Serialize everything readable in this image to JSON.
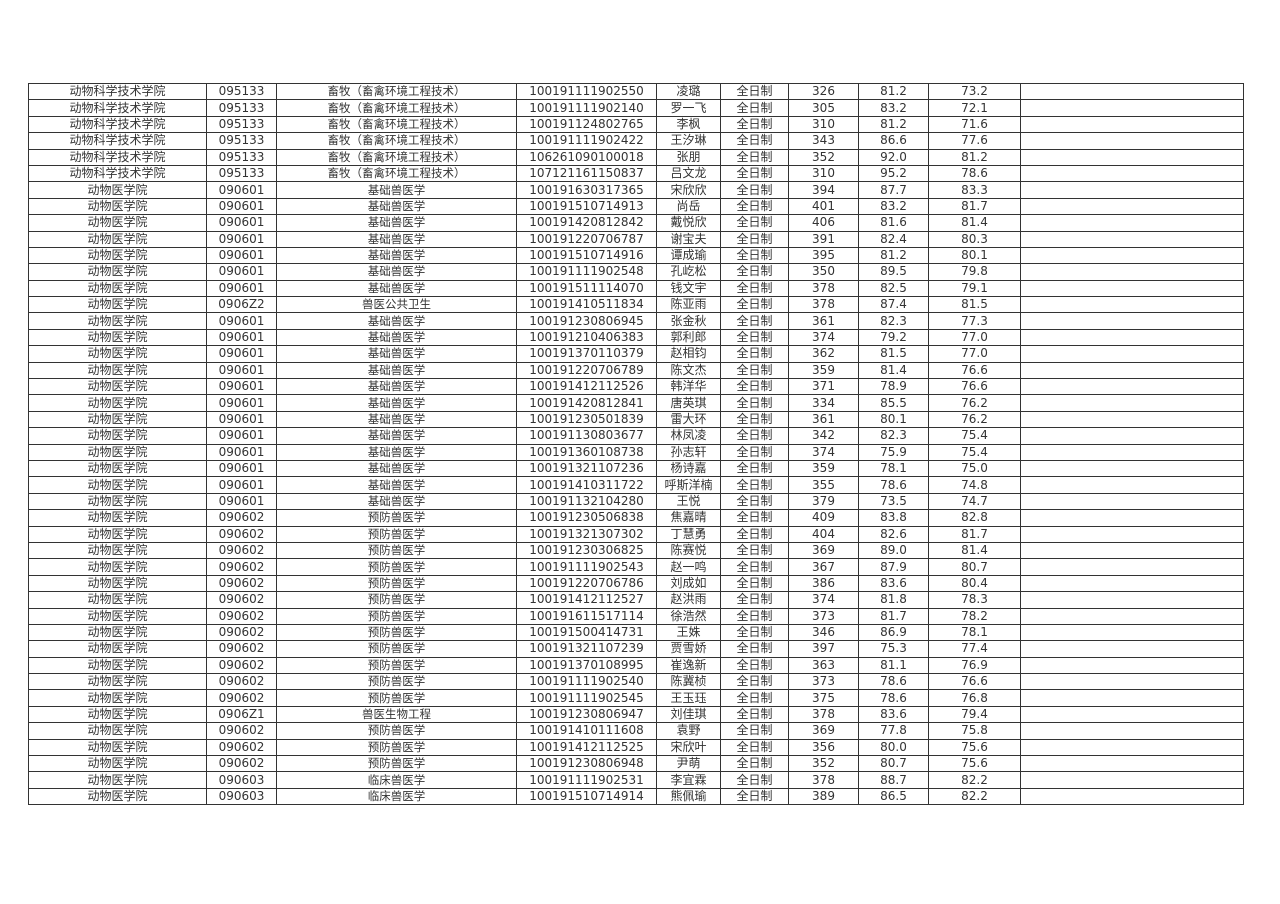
{
  "table": {
    "rows": [
      [
        "动物科学技术学院",
        "095133",
        "畜牧（畜禽环境工程技术）",
        "100191111902550",
        "凌璐",
        "全日制",
        "326",
        "81.2",
        "73.2",
        ""
      ],
      [
        "动物科学技术学院",
        "095133",
        "畜牧（畜禽环境工程技术）",
        "100191111902140",
        "罗一飞",
        "全日制",
        "305",
        "83.2",
        "72.1",
        ""
      ],
      [
        "动物科学技术学院",
        "095133",
        "畜牧（畜禽环境工程技术）",
        "100191124802765",
        "李枫",
        "全日制",
        "310",
        "81.2",
        "71.6",
        ""
      ],
      [
        "动物科学技术学院",
        "095133",
        "畜牧（畜禽环境工程技术）",
        "100191111902422",
        "王汐琳",
        "全日制",
        "343",
        "86.6",
        "77.6",
        ""
      ],
      [
        "动物科学技术学院",
        "095133",
        "畜牧（畜禽环境工程技术）",
        "106261090100018",
        "张朋",
        "全日制",
        "352",
        "92.0",
        "81.2",
        ""
      ],
      [
        "动物科学技术学院",
        "095133",
        "畜牧（畜禽环境工程技术）",
        "107121161150837",
        "吕文龙",
        "全日制",
        "310",
        "95.2",
        "78.6",
        ""
      ],
      [
        "动物医学院",
        "090601",
        "基础兽医学",
        "100191630317365",
        "宋欣欣",
        "全日制",
        "394",
        "87.7",
        "83.3",
        ""
      ],
      [
        "动物医学院",
        "090601",
        "基础兽医学",
        "100191510714913",
        "尚岳",
        "全日制",
        "401",
        "83.2",
        "81.7",
        ""
      ],
      [
        "动物医学院",
        "090601",
        "基础兽医学",
        "100191420812842",
        "戴悦欣",
        "全日制",
        "406",
        "81.6",
        "81.4",
        ""
      ],
      [
        "动物医学院",
        "090601",
        "基础兽医学",
        "100191220706787",
        "谢宝夫",
        "全日制",
        "391",
        "82.4",
        "80.3",
        ""
      ],
      [
        "动物医学院",
        "090601",
        "基础兽医学",
        "100191510714916",
        "谭成瑜",
        "全日制",
        "395",
        "81.2",
        "80.1",
        ""
      ],
      [
        "动物医学院",
        "090601",
        "基础兽医学",
        "100191111902548",
        "孔屹松",
        "全日制",
        "350",
        "89.5",
        "79.8",
        ""
      ],
      [
        "动物医学院",
        "090601",
        "基础兽医学",
        "100191511114070",
        "钱文宇",
        "全日制",
        "378",
        "82.5",
        "79.1",
        ""
      ],
      [
        "动物医学院",
        "0906Z2",
        "兽医公共卫生",
        "100191410511834",
        "陈亚雨",
        "全日制",
        "378",
        "87.4",
        "81.5",
        ""
      ],
      [
        "动物医学院",
        "090601",
        "基础兽医学",
        "100191230806945",
        "张金秋",
        "全日制",
        "361",
        "82.3",
        "77.3",
        ""
      ],
      [
        "动物医学院",
        "090601",
        "基础兽医学",
        "100191210406383",
        "郭利郎",
        "全日制",
        "374",
        "79.2",
        "77.0",
        ""
      ],
      [
        "动物医学院",
        "090601",
        "基础兽医学",
        "100191370110379",
        "赵相钧",
        "全日制",
        "362",
        "81.5",
        "77.0",
        ""
      ],
      [
        "动物医学院",
        "090601",
        "基础兽医学",
        "100191220706789",
        "陈文杰",
        "全日制",
        "359",
        "81.4",
        "76.6",
        ""
      ],
      [
        "动物医学院",
        "090601",
        "基础兽医学",
        "100191412112526",
        "韩洋华",
        "全日制",
        "371",
        "78.9",
        "76.6",
        ""
      ],
      [
        "动物医学院",
        "090601",
        "基础兽医学",
        "100191420812841",
        "唐英琪",
        "全日制",
        "334",
        "85.5",
        "76.2",
        ""
      ],
      [
        "动物医学院",
        "090601",
        "基础兽医学",
        "100191230501839",
        "雷大环",
        "全日制",
        "361",
        "80.1",
        "76.2",
        ""
      ],
      [
        "动物医学院",
        "090601",
        "基础兽医学",
        "100191130803677",
        "林凤凌",
        "全日制",
        "342",
        "82.3",
        "75.4",
        ""
      ],
      [
        "动物医学院",
        "090601",
        "基础兽医学",
        "100191360108738",
        "孙志轩",
        "全日制",
        "374",
        "75.9",
        "75.4",
        ""
      ],
      [
        "动物医学院",
        "090601",
        "基础兽医学",
        "100191321107236",
        "杨诗嘉",
        "全日制",
        "359",
        "78.1",
        "75.0",
        ""
      ],
      [
        "动物医学院",
        "090601",
        "基础兽医学",
        "100191410311722",
        "呼斯洋楠",
        "全日制",
        "355",
        "78.6",
        "74.8",
        ""
      ],
      [
        "动物医学院",
        "090601",
        "基础兽医学",
        "100191132104280",
        "王悦",
        "全日制",
        "379",
        "73.5",
        "74.7",
        ""
      ],
      [
        "动物医学院",
        "090602",
        "预防兽医学",
        "100191230506838",
        "焦嘉晴",
        "全日制",
        "409",
        "83.8",
        "82.8",
        ""
      ],
      [
        "动物医学院",
        "090602",
        "预防兽医学",
        "100191321307302",
        "丁慧勇",
        "全日制",
        "404",
        "82.6",
        "81.7",
        ""
      ],
      [
        "动物医学院",
        "090602",
        "预防兽医学",
        "100191230306825",
        "陈赛悦",
        "全日制",
        "369",
        "89.0",
        "81.4",
        ""
      ],
      [
        "动物医学院",
        "090602",
        "预防兽医学",
        "100191111902543",
        "赵一鸣",
        "全日制",
        "367",
        "87.9",
        "80.7",
        ""
      ],
      [
        "动物医学院",
        "090602",
        "预防兽医学",
        "100191220706786",
        "刘成如",
        "全日制",
        "386",
        "83.6",
        "80.4",
        ""
      ],
      [
        "动物医学院",
        "090602",
        "预防兽医学",
        "100191412112527",
        "赵洪雨",
        "全日制",
        "374",
        "81.8",
        "78.3",
        ""
      ],
      [
        "动物医学院",
        "090602",
        "预防兽医学",
        "100191611517114",
        "徐浩然",
        "全日制",
        "373",
        "81.7",
        "78.2",
        ""
      ],
      [
        "动物医学院",
        "090602",
        "预防兽医学",
        "100191500414731",
        "王姝",
        "全日制",
        "346",
        "86.9",
        "78.1",
        ""
      ],
      [
        "动物医学院",
        "090602",
        "预防兽医学",
        "100191321107239",
        "贾雪娇",
        "全日制",
        "397",
        "75.3",
        "77.4",
        ""
      ],
      [
        "动物医学院",
        "090602",
        "预防兽医学",
        "100191370108995",
        "崔逸新",
        "全日制",
        "363",
        "81.1",
        "76.9",
        ""
      ],
      [
        "动物医学院",
        "090602",
        "预防兽医学",
        "100191111902540",
        "陈冀桢",
        "全日制",
        "373",
        "78.6",
        "76.6",
        ""
      ],
      [
        "动物医学院",
        "090602",
        "预防兽医学",
        "100191111902545",
        "王玉珏",
        "全日制",
        "375",
        "78.6",
        "76.8",
        ""
      ],
      [
        "动物医学院",
        "0906Z1",
        "兽医生物工程",
        "100191230806947",
        "刘佳琪",
        "全日制",
        "378",
        "83.6",
        "79.4",
        ""
      ],
      [
        "动物医学院",
        "090602",
        "预防兽医学",
        "100191410111608",
        "袁野",
        "全日制",
        "369",
        "77.8",
        "75.8",
        ""
      ],
      [
        "动物医学院",
        "090602",
        "预防兽医学",
        "100191412112525",
        "宋欣叶",
        "全日制",
        "356",
        "80.0",
        "75.6",
        ""
      ],
      [
        "动物医学院",
        "090602",
        "预防兽医学",
        "100191230806948",
        "尹萌",
        "全日制",
        "352",
        "80.7",
        "75.6",
        ""
      ],
      [
        "动物医学院",
        "090603",
        "临床兽医学",
        "100191111902531",
        "李宜霖",
        "全日制",
        "378",
        "88.7",
        "82.2",
        ""
      ],
      [
        "动物医学院",
        "090603",
        "临床兽医学",
        "100191510714914",
        "熊佩瑜",
        "全日制",
        "389",
        "86.5",
        "82.2",
        ""
      ]
    ]
  }
}
